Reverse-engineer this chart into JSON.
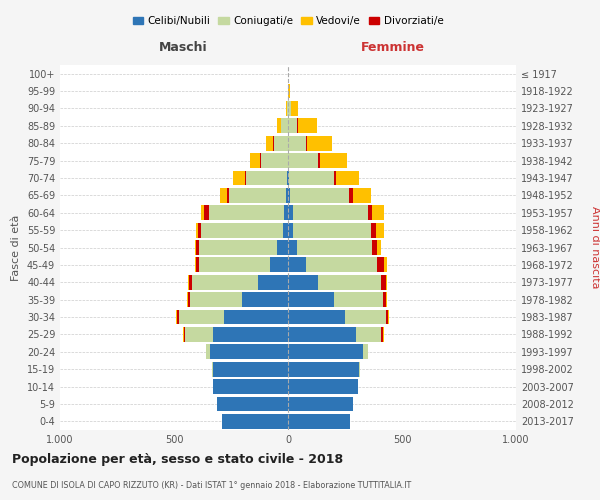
{
  "age_groups": [
    "0-4",
    "5-9",
    "10-14",
    "15-19",
    "20-24",
    "25-29",
    "30-34",
    "35-39",
    "40-44",
    "45-49",
    "50-54",
    "55-59",
    "60-64",
    "65-69",
    "70-74",
    "75-79",
    "80-84",
    "85-89",
    "90-94",
    "95-99",
    "100+"
  ],
  "birth_years": [
    "2013-2017",
    "2008-2012",
    "2003-2007",
    "1998-2002",
    "1993-1997",
    "1988-1992",
    "1983-1987",
    "1978-1982",
    "1973-1977",
    "1968-1972",
    "1963-1967",
    "1958-1962",
    "1953-1957",
    "1948-1952",
    "1943-1947",
    "1938-1942",
    "1933-1937",
    "1928-1932",
    "1923-1927",
    "1918-1922",
    "≤ 1917"
  ],
  "male": {
    "celibi": [
      290,
      310,
      330,
      330,
      340,
      330,
      280,
      200,
      130,
      80,
      50,
      20,
      18,
      8,
      5,
      0,
      0,
      0,
      0,
      0,
      0
    ],
    "coniugati": [
      0,
      0,
      0,
      5,
      20,
      120,
      200,
      230,
      290,
      310,
      340,
      360,
      330,
      250,
      180,
      120,
      60,
      30,
      5,
      0,
      0
    ],
    "vedovi": [
      0,
      0,
      0,
      0,
      0,
      5,
      5,
      5,
      5,
      5,
      5,
      10,
      15,
      30,
      50,
      40,
      30,
      20,
      5,
      0,
      0
    ],
    "divorziati": [
      0,
      0,
      0,
      0,
      0,
      5,
      5,
      10,
      15,
      15,
      15,
      15,
      20,
      10,
      5,
      5,
      5,
      0,
      0,
      0,
      0
    ]
  },
  "female": {
    "nubili": [
      270,
      285,
      305,
      310,
      330,
      300,
      250,
      200,
      130,
      80,
      40,
      20,
      20,
      8,
      5,
      0,
      0,
      0,
      0,
      0,
      0
    ],
    "coniugate": [
      0,
      0,
      0,
      5,
      20,
      110,
      180,
      215,
      280,
      310,
      330,
      345,
      330,
      260,
      195,
      130,
      80,
      40,
      15,
      2,
      0
    ],
    "vedove": [
      0,
      0,
      0,
      0,
      0,
      5,
      5,
      5,
      5,
      15,
      20,
      35,
      50,
      80,
      100,
      120,
      110,
      80,
      30,
      5,
      0
    ],
    "divorziate": [
      0,
      0,
      0,
      0,
      0,
      5,
      10,
      15,
      20,
      30,
      20,
      20,
      20,
      15,
      10,
      10,
      5,
      5,
      0,
      0,
      0
    ]
  },
  "colors": {
    "celibi": "#2e75b6",
    "coniugati": "#c5d9a0",
    "vedovi": "#ffc000",
    "divorziati": "#cc0000"
  },
  "xlim": 1000,
  "title": "Popolazione per età, sesso e stato civile - 2018",
  "subtitle": "COMUNE DI ISOLA DI CAPO RIZZUTO (KR) - Dati ISTAT 1° gennaio 2018 - Elaborazione TUTTITALIA.IT",
  "ylabel_left": "Fasce di età",
  "ylabel_right": "Anni di nascita",
  "xlabel_left": "Maschi",
  "xlabel_right": "Femmine",
  "legend_labels": [
    "Celibi/Nubili",
    "Coniugati/e",
    "Vedovi/e",
    "Divorziati/e"
  ],
  "bg_color": "#f5f5f5",
  "plot_bg_color": "#ffffff"
}
